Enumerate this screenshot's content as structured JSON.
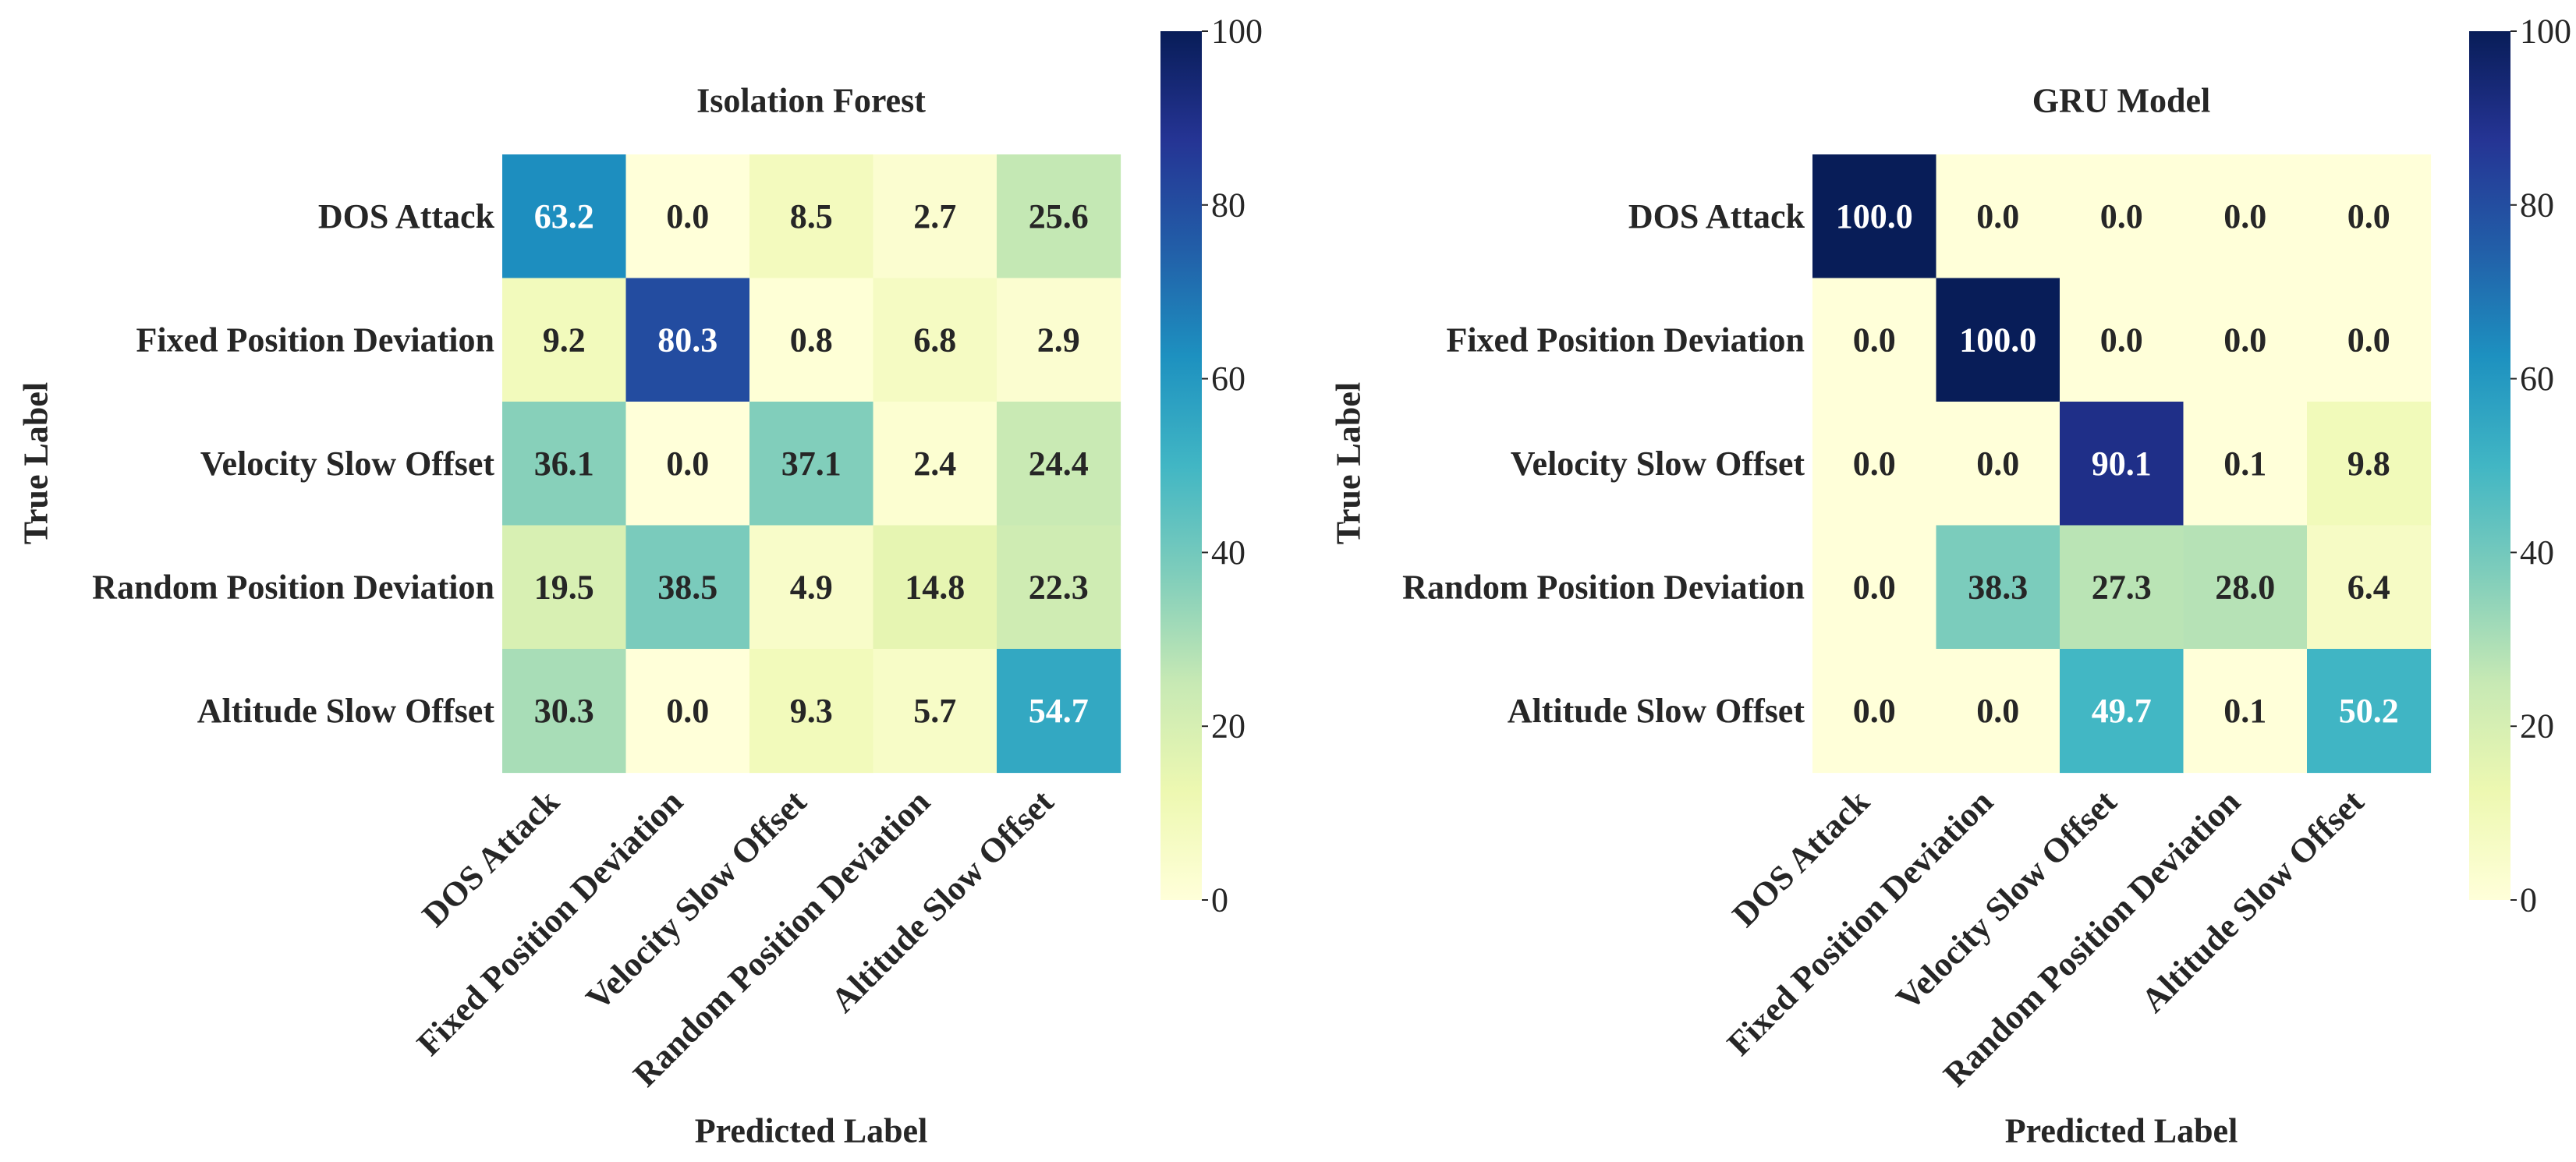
{
  "chart_data": [
    {
      "type": "heatmap",
      "title": "Isolation Forest",
      "xlabel": "Predicted Label",
      "ylabel": "True Label",
      "x_categories": [
        "DOS Attack",
        "Fixed Position Deviation",
        "Velocity Slow Offset",
        "Random Position Deviation",
        "Altitude Slow Offset"
      ],
      "y_categories": [
        "DOS Attack",
        "Fixed Position Deviation",
        "Velocity Slow Offset",
        "Random Position Deviation",
        "Altitude Slow Offset"
      ],
      "values": [
        [
          63.2,
          0.0,
          8.5,
          2.7,
          25.6
        ],
        [
          9.2,
          80.3,
          0.8,
          6.8,
          2.9
        ],
        [
          36.1,
          0.0,
          37.1,
          2.4,
          24.4
        ],
        [
          19.5,
          38.5,
          4.9,
          14.8,
          22.3
        ],
        [
          30.3,
          0.0,
          9.3,
          5.7,
          54.7
        ]
      ],
      "value_range": [
        0,
        100
      ],
      "colorbar_ticks": [
        0,
        20,
        40,
        60,
        80,
        100
      ],
      "colormap_stops": [
        "#ffffd9",
        "#edf8b1",
        "#c7e9b4",
        "#7fcdbb",
        "#41b6c4",
        "#1d91c0",
        "#225ea8",
        "#253494",
        "#081d58"
      ]
    },
    {
      "type": "heatmap",
      "title": "GRU Model",
      "xlabel": "Predicted Label",
      "ylabel": "True Label",
      "x_categories": [
        "DOS Attack",
        "Fixed Position Deviation",
        "Velocity Slow Offset",
        "Random Position Deviation",
        "Altitude Slow Offset"
      ],
      "y_categories": [
        "DOS Attack",
        "Fixed Position Deviation",
        "Velocity Slow Offset",
        "Random Position Deviation",
        "Altitude Slow Offset"
      ],
      "values": [
        [
          100.0,
          0.0,
          0.0,
          0.0,
          0.0
        ],
        [
          0.0,
          100.0,
          0.0,
          0.0,
          0.0
        ],
        [
          0.0,
          0.0,
          90.1,
          0.1,
          9.8
        ],
        [
          0.0,
          38.3,
          27.3,
          28.0,
          6.4
        ],
        [
          0.0,
          0.0,
          49.7,
          0.1,
          50.2
        ]
      ],
      "value_range": [
        0,
        100
      ],
      "colorbar_ticks": [
        0,
        20,
        40,
        60,
        80,
        100
      ],
      "colormap_stops": [
        "#ffffd9",
        "#edf8b1",
        "#c7e9b4",
        "#7fcdbb",
        "#41b6c4",
        "#1d91c0",
        "#225ea8",
        "#253494",
        "#081d58"
      ]
    }
  ]
}
